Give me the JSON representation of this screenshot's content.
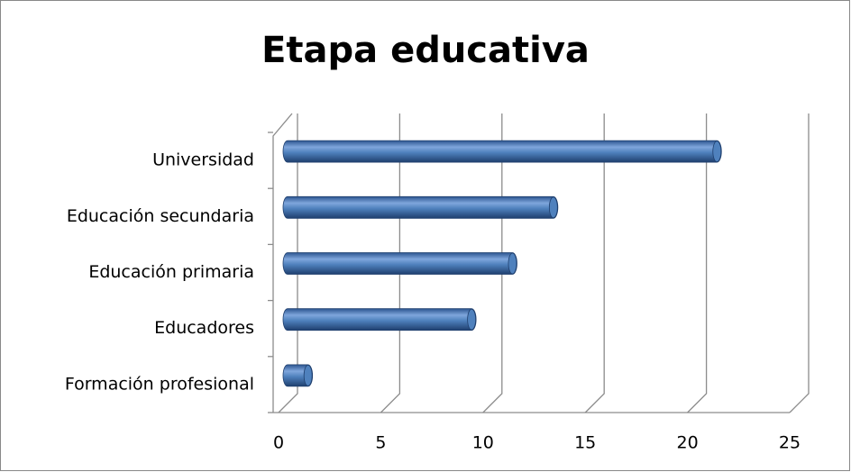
{
  "chart_data": {
    "type": "bar",
    "orientation": "horizontal",
    "title": "Etapa educativa",
    "categories": [
      "Universidad",
      "Educación secundaria",
      "Educación primaria",
      "Educadores",
      "Formación profesional"
    ],
    "values": [
      21,
      13,
      11,
      9,
      1
    ],
    "color": "#4f81bd",
    "xlim": [
      0,
      25
    ],
    "xticks": [
      0,
      5,
      10,
      15,
      20,
      25
    ],
    "grid": true
  }
}
